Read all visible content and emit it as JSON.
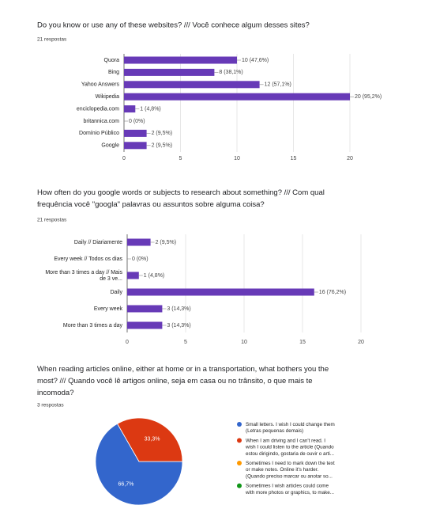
{
  "chart_data": [
    {
      "type": "hbar",
      "title": "Do you know or use any of these websites? /// Você conhece algum desses sites?",
      "subtitle": "21 respostas",
      "categories": [
        "Quora",
        "Bing",
        "Yahoo Answers",
        "Wikipedia",
        "enciclopedia.com",
        "britannica.com",
        "Domínio Público",
        "Google"
      ],
      "values": [
        10,
        8,
        12,
        20,
        1,
        0,
        2,
        2
      ],
      "value_labels": [
        "10 (47,6%)",
        "8 (38,1%)",
        "12 (57,1%)",
        "20 (95,2%)",
        "1 (4,8%)",
        "0 (0%)",
        "2 (9,5%)",
        "2 (9,5%)"
      ],
      "color": "#673ab7",
      "xlim": [
        0,
        20
      ],
      "xticks": [
        0,
        5,
        10,
        15,
        20
      ],
      "grid": true
    },
    {
      "type": "hbar",
      "title": "How often do you google words or subjects to research about something? /// Com qual\nfrequência você \"googla\" palavras ou assuntos sobre alguma coisa?",
      "subtitle": "21 respostas",
      "categories": [
        "Daily // Diariamente",
        "Every week // Todos os dias",
        "More than 3 times a day // Mais\nde 3 ve...",
        "Daily",
        "Every week",
        "More than 3 times a day"
      ],
      "values": [
        2,
        0,
        1,
        16,
        3,
        3
      ],
      "value_labels": [
        "2 (9,5%)",
        "0 (0%)",
        "1 (4,8%)",
        "16 (76,2%)",
        "3 (14,3%)",
        "3 (14,3%)"
      ],
      "color": "#673ab7",
      "xlim": [
        0,
        20
      ],
      "xticks": [
        0,
        5,
        10,
        15,
        20
      ],
      "grid": true
    },
    {
      "type": "pie",
      "title": "When reading articles online, either at home or in a transportation, what bothers you the\nmost? /// Quando você lê artigos online, seja em casa ou no trânsito, o que mais te\nincomoda?",
      "subtitle": "3 respostas",
      "categories": [
        "Small letters. I wish I could change them\n(Letras pequenas demais)",
        "When I am driving and I can't read. I\nwish I could listen to the article (Quando\nestou dirigindo, gostaria de ouvir o arti...",
        "Sometimes I need to mark down the text\nor make notes. Online it's harder.\n(Quando preciso marcar ou anotar so...",
        "Sometimes I wish articles could come\nwith more photos or graphics, to make..."
      ],
      "values": [
        66.7,
        33.3,
        0,
        0
      ],
      "value_labels": [
        "66,7%",
        "33,3%",
        null,
        null
      ],
      "colors": [
        "#3366cc",
        "#dc3912",
        "#ff9900",
        "#109618"
      ]
    }
  ]
}
